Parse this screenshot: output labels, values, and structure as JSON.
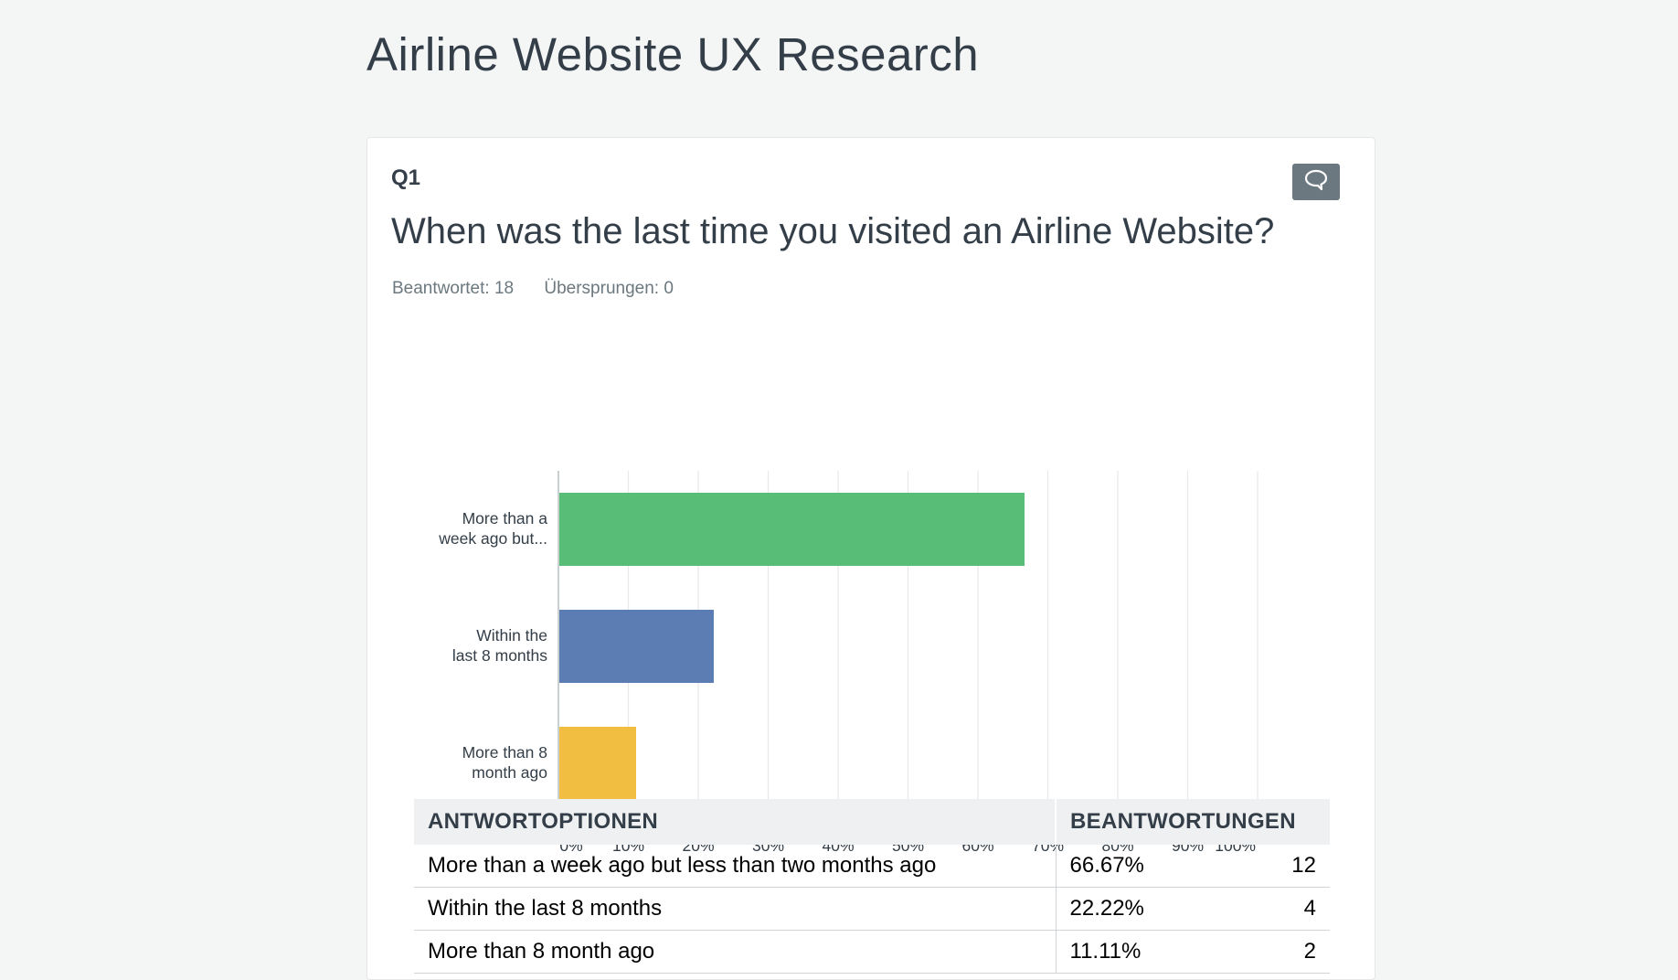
{
  "page": {
    "title": "Airline Website UX Research"
  },
  "question": {
    "number": "Q1",
    "text": "When was the last time you visited an Airline Website?",
    "answered": "Beantwortet: 18",
    "skipped": "Übersprungen: 0",
    "comment_icon": "speech-bubble-icon"
  },
  "chart_data": {
    "type": "bar",
    "orientation": "horizontal",
    "categories": [
      "More than a week ago but...",
      "Within the last 8 months",
      "More than 8 month ago"
    ],
    "category_lines": [
      [
        "More than a",
        "week ago but..."
      ],
      [
        "Within the",
        "last 8 months"
      ],
      [
        "More than 8",
        "month ago"
      ]
    ],
    "values": [
      66.67,
      22.22,
      11.11
    ],
    "colors": [
      "#57bd77",
      "#5b7db3",
      "#f1be42"
    ],
    "xlim": [
      0,
      100
    ],
    "xticks": [
      "0%",
      "10%",
      "20%",
      "30%",
      "40%",
      "50%",
      "60%",
      "70%",
      "80%",
      "90%",
      "100%"
    ],
    "grid": true
  },
  "table": {
    "headers": [
      "ANTWORTOPTIONEN",
      "BEANTWORTUNGEN"
    ],
    "rows": [
      {
        "option": "More than a week ago but less than two months ago",
        "percent": "66.67%",
        "count": "12"
      },
      {
        "option": "Within the last 8 months",
        "percent": "22.22%",
        "count": "4"
      },
      {
        "option": "More than 8 month ago",
        "percent": "11.11%",
        "count": "2"
      }
    ]
  }
}
